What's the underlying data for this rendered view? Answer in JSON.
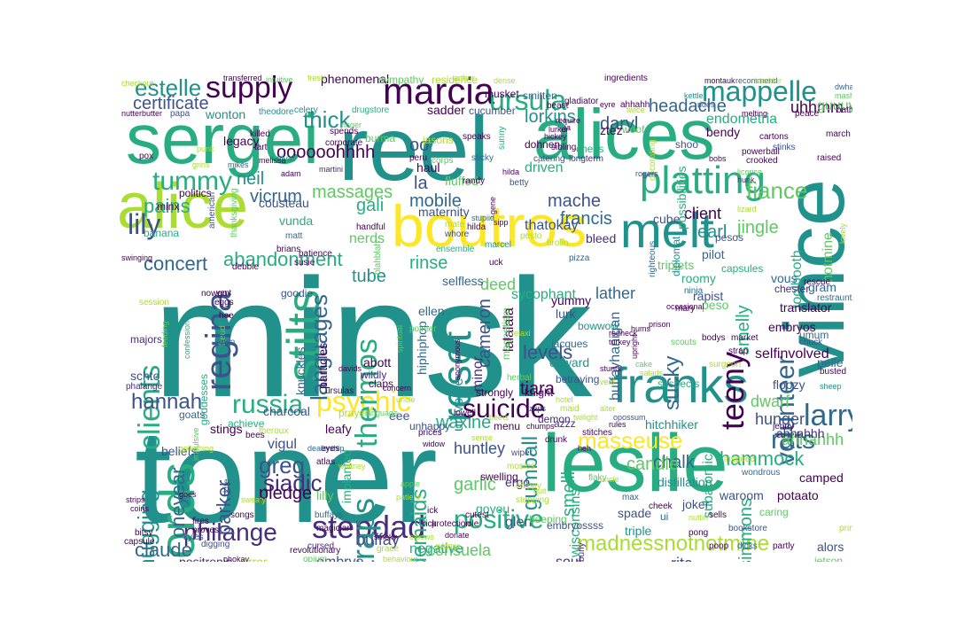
{
  "title": "",
  "palette": [
    "#440154",
    "#3b528b",
    "#21918c",
    "#5ec962",
    "#fde725",
    "#2c728e",
    "#27ad81",
    "#472d7b",
    "#aadc32",
    "#31688e"
  ],
  "words": [
    "minsk",
    "toner",
    "leslie",
    "vince",
    "reel",
    "alices",
    "sergei",
    "alice",
    "boutros",
    "marcia",
    "platting",
    "franks",
    "melt",
    "stepdad",
    "philange",
    "chords",
    "stilts",
    "regina",
    "reset",
    "supply",
    "ursula",
    "mappelle",
    "estelle",
    "certificate",
    "thick",
    "tummy",
    "lily",
    "clients",
    "russia",
    "psychic",
    "suicide",
    "positive",
    "masseuse",
    "madnessnotnotmine",
    "greg",
    "traps",
    "thermos",
    "languages",
    "teeny",
    "volunteer",
    "larry",
    "rats",
    "hammock",
    "fiance",
    "headache",
    "daryl",
    "lorkins",
    "endometria",
    "uhhmm",
    "guuuys",
    "massages",
    "abandonment",
    "concert",
    "pains",
    "neil",
    "vicrum",
    "oooooohhhh",
    "mobile",
    "gali",
    "mache",
    "francis",
    "la",
    "oo",
    "client",
    "earl",
    "jingle",
    "smelly",
    "sucky",
    "levels",
    "tiara",
    "cameron",
    "hunger",
    "waxine",
    "bridemaids",
    "garlic",
    "smellly",
    "gumball",
    "chalk",
    "rita",
    "simmons",
    "dwarf",
    "ahhahhh",
    "candle",
    "siadic",
    "parker",
    "mugging",
    "oneyear",
    "claude",
    "hannah",
    "pledge",
    "buffay",
    "huntley",
    "consuela",
    "negative",
    "wisconsins",
    "soul",
    "positronic",
    "error",
    "embryo",
    "notmine",
    "toolbooth",
    "pelle",
    "selfinvolved",
    "embryos",
    "translator",
    "gram",
    "hitchhiker",
    "buffayhanigan",
    "lalalala",
    "universe",
    "minor",
    "rinse",
    "deed",
    "lather",
    "selfless",
    "tube",
    "sycophant",
    "thatokay",
    "nerds",
    "driven",
    "fluffed",
    "haul",
    "maternity",
    "bleed",
    "possibilities",
    "cube",
    "triplets",
    "pilot",
    "roomy",
    "rapist",
    "capsules",
    "chester",
    "vous",
    "waroom",
    "potaato",
    "caring",
    "alors",
    "jetson",
    "prime",
    "camped",
    "subatomic",
    "ahhahhh",
    "distillation",
    "joker",
    "spade",
    "triple",
    "glen",
    "goyou",
    "ergo",
    "stings",
    "charcoal",
    "knuckles",
    "particles",
    "abott",
    "hiphiphop",
    "ellen",
    "yummy",
    "lurk",
    "bowwow",
    "magnetism",
    "coward",
    "jacques",
    "betraying",
    "azzz",
    "schto",
    "phalange",
    "goddesses",
    "goats",
    "leafy",
    "vigul",
    "implanted",
    "lilly",
    "beliefs",
    "achieve",
    "songs",
    "buffays",
    "kite",
    "cursed",
    "opium",
    "grace",
    "eee",
    "prayer",
    "claps",
    "wildly",
    "strongly",
    "unhappy",
    "menu",
    "demon",
    "swelling",
    "beeping",
    "embryossss",
    "stitches",
    "flaky",
    "burly",
    "max",
    "ui",
    "sells",
    "woof",
    "phenomenal",
    "sympathy",
    "residence",
    "musket",
    "smitten",
    "ingredients",
    "montauk",
    "recommend",
    "checkout",
    "transferred",
    "intuitive",
    "nutterbutter",
    "papa",
    "wonton",
    "theodore",
    "celery",
    "drugstore",
    "burma",
    "sadder",
    "cucumber",
    "ahhahh",
    "gladiator",
    "kettle",
    "shoo",
    "bendy",
    "decorating",
    "chess",
    "sunny",
    "speaks",
    "jasons",
    "corps",
    "dohnen",
    "catering",
    "killed",
    "tart",
    "pivat",
    "legacy",
    "spends",
    "corporate",
    "eyre",
    "ztez",
    "oath",
    "politics",
    "minx",
    "american",
    "thanksgiving",
    "cousteau",
    "vunda",
    "handful",
    "susie",
    "debbie",
    "matt",
    "brians",
    "patience",
    "banana",
    "swinging",
    "nowgo",
    "goodie",
    "freud",
    "kevin",
    "majors",
    "session",
    "feeding",
    "confession",
    "pointer",
    "hunk",
    "whore",
    "ensemble",
    "marcel",
    "blahblah",
    "peso",
    "pesos",
    "rogers",
    "umum",
    "ninja",
    "mary",
    "bodys",
    "scouts",
    "surgeon",
    "busted",
    "suspects",
    "market",
    "strap",
    "chuck",
    "sheep",
    "floozy",
    "jenny",
    "inspired",
    "wondrous",
    "partly",
    "rescue",
    "restraunt",
    "lovely",
    "diplomat",
    "righteous",
    "occasional",
    "pong",
    "poop",
    "bookstore",
    "dicks",
    "nuttin",
    "sibling",
    "longterm",
    "require",
    "beast",
    "uck",
    "randy",
    "hilda",
    "sticky",
    "betty",
    "gene",
    "peru",
    "mate",
    "stupiid",
    "pesto",
    "brolin",
    "sipp",
    "pizza",
    "ringer",
    "martini",
    "adam",
    "melissa",
    "mikes",
    "lurker",
    "twice",
    "hickey",
    "ja",
    "rides",
    "bladder",
    "dwha",
    "mash",
    "march",
    "raised",
    "cartons",
    "powerball",
    "stinks",
    "crooked",
    "peace",
    "melting",
    "bobs",
    "lizard",
    "licorice",
    "magician",
    "knight",
    "hotel",
    "maid",
    "zaps",
    "mosies",
    "wiper",
    "drunk",
    "heh",
    "twilight",
    "alter",
    "rules",
    "chippy",
    "stepping",
    "quit",
    "uncle",
    "opossum",
    "cheek",
    "cutest",
    "ole",
    "protection",
    "rick",
    "elbows",
    "donate",
    "behaviour",
    "widow",
    "lowell",
    "prices",
    "sense",
    "chumps",
    "widow",
    "kyles",
    "fires",
    "proves",
    "digging",
    "capsule",
    "bitsy",
    "coins",
    "strips",
    "goes",
    "theroux",
    "dealership",
    "whitney",
    "atlas",
    "eyes",
    "bees",
    "impulsive",
    "gellerbing",
    "revolutionary",
    "ohokay",
    "sweaty",
    "ick",
    "patient",
    "apple",
    "language",
    "concern",
    "ursulas",
    "davids",
    "uncle",
    "hee",
    "eggs",
    "vent",
    "fresh",
    "arthur",
    "dense",
    "hilda",
    "smoky",
    "herbal",
    "relaxi",
    "anonymous",
    "spiritual",
    "veal",
    "stunts",
    "hums",
    "upright",
    "prison",
    "cake",
    "salads",
    "redneck",
    "turkey",
    "pox",
    "punk",
    "grins",
    "beets"
  ]
}
